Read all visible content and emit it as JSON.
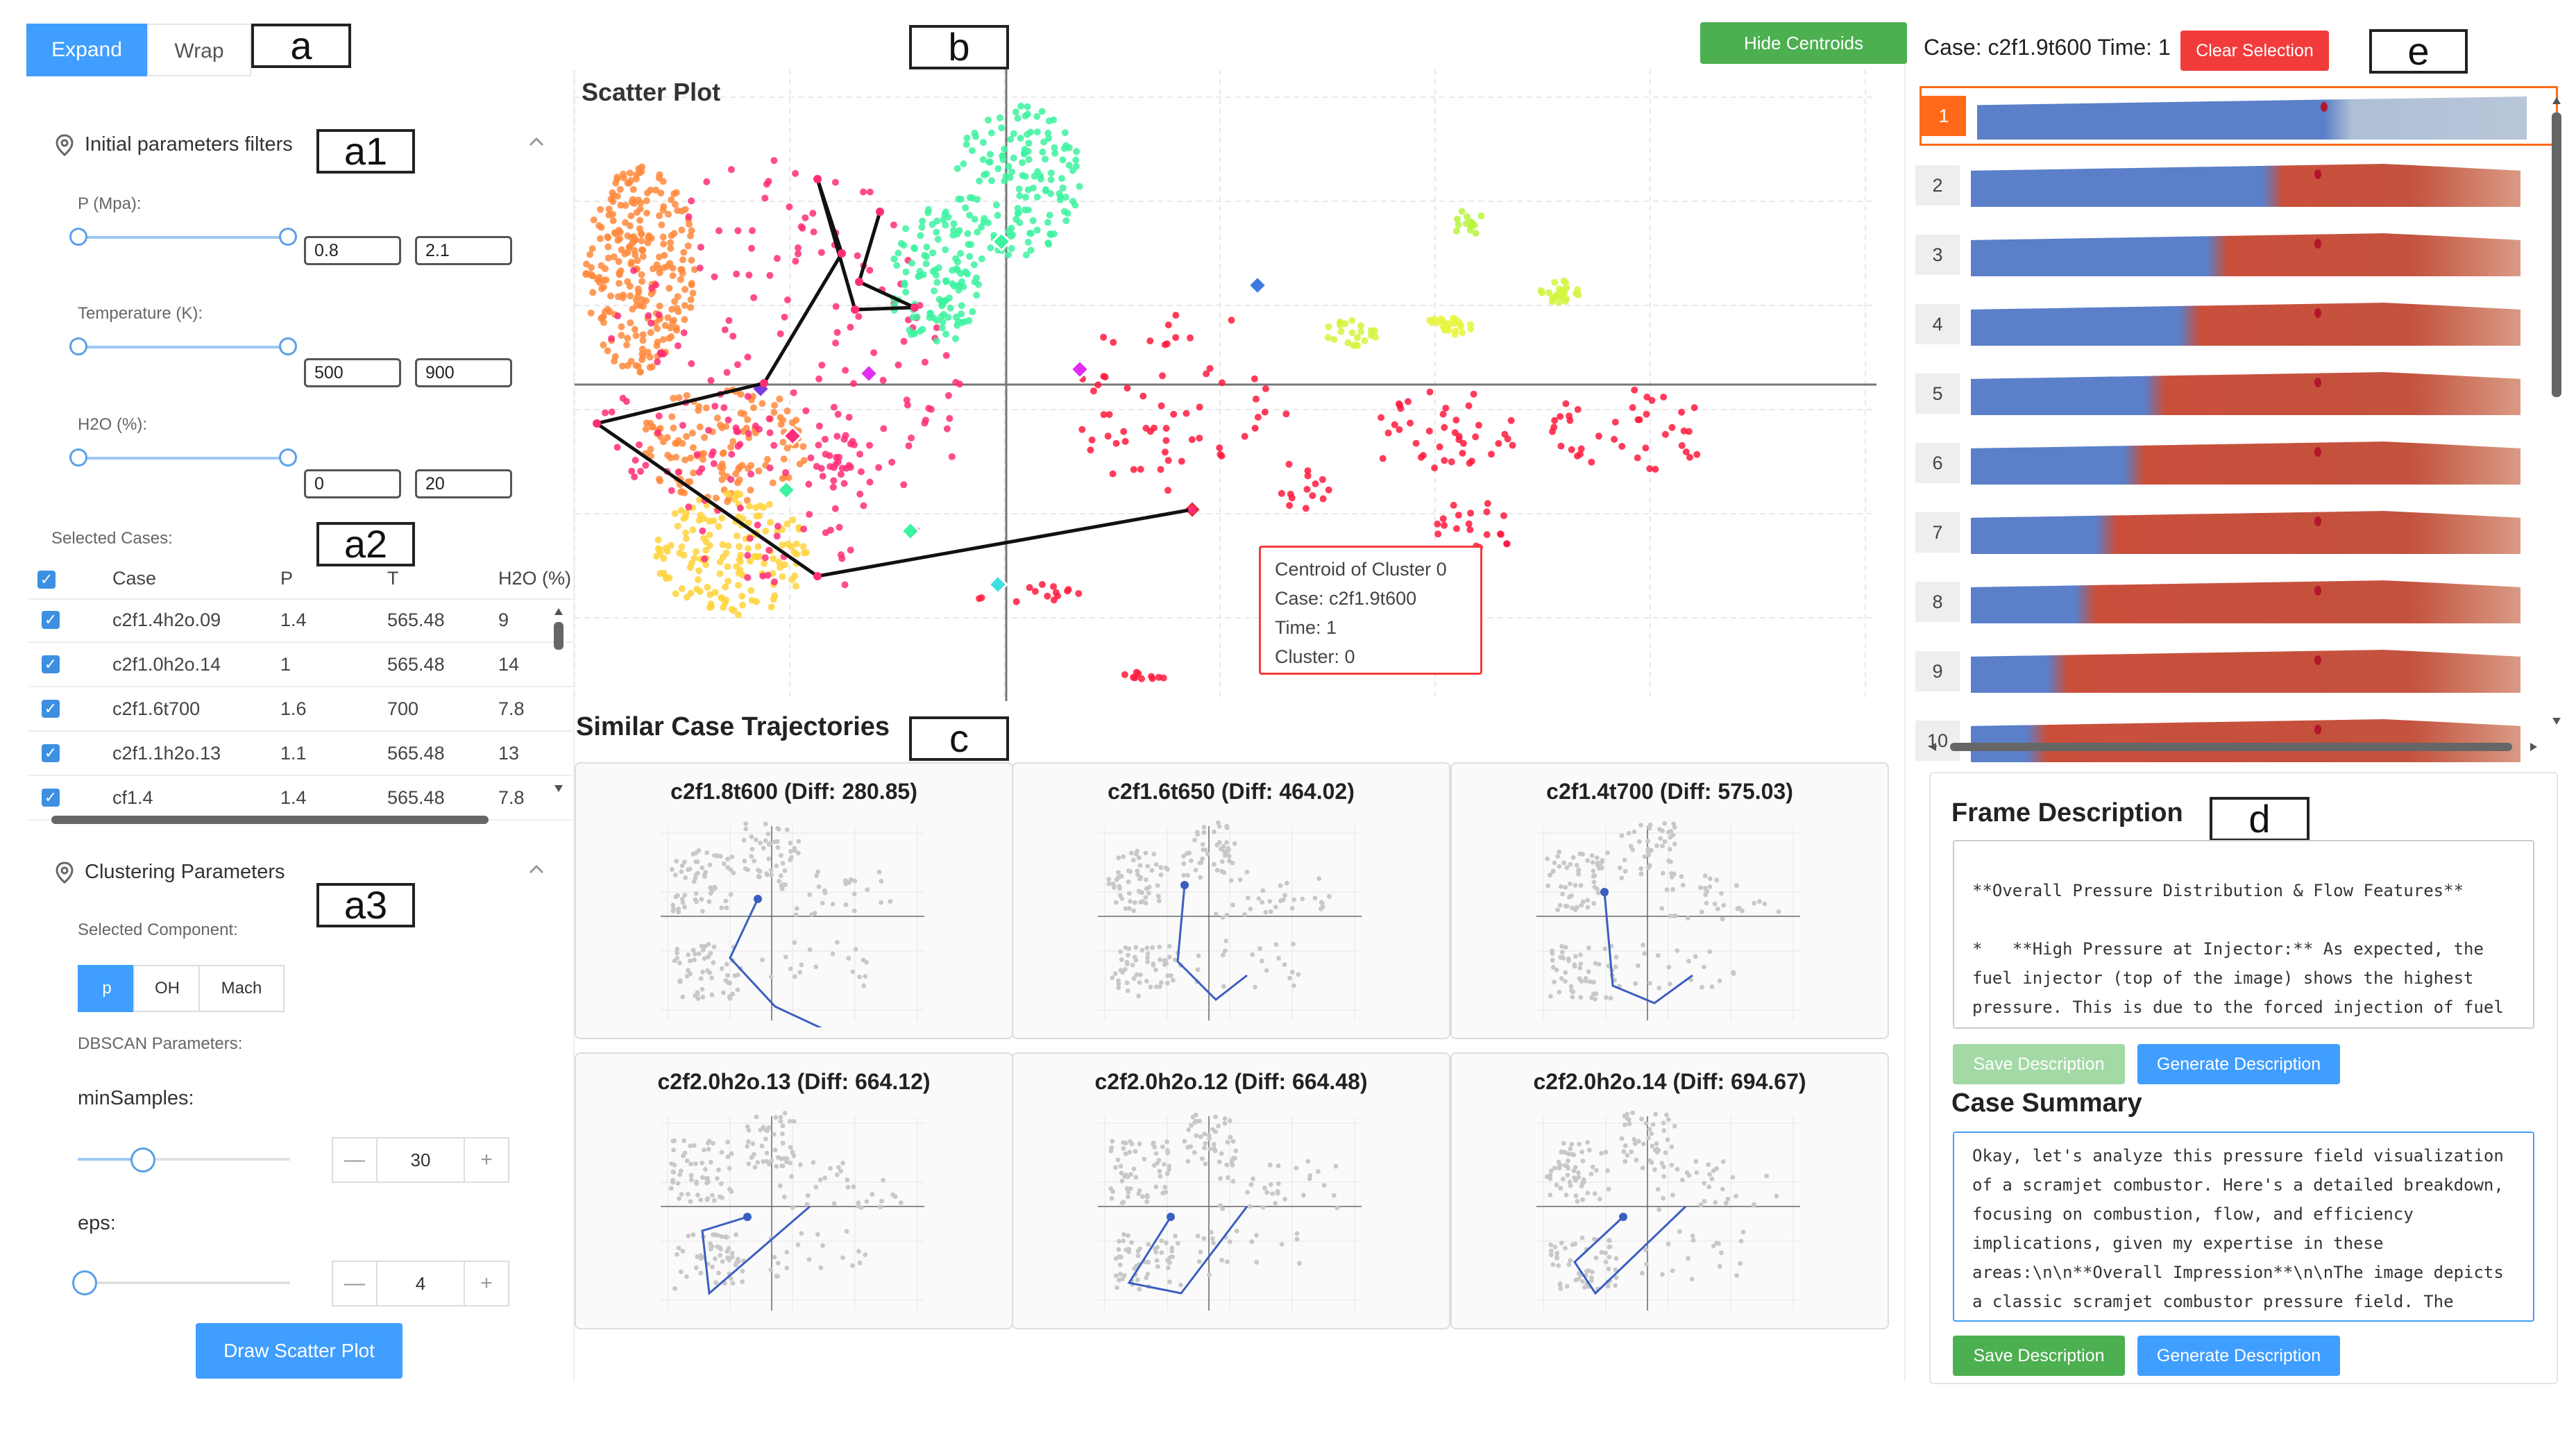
{
  "tabs": [
    {
      "label": "Expand",
      "active": true
    },
    {
      "label": "Wrap",
      "active": false
    }
  ],
  "panel_labels": {
    "a": "a",
    "a1": "a1",
    "a2": "a2",
    "a3": "a3",
    "b": "b",
    "c": "c",
    "d": "d",
    "e": "e"
  },
  "filters": {
    "title": "Initial parameters filters",
    "p": {
      "label": "P (Mpa):",
      "min": "0.8",
      "max": "2.1"
    },
    "temperature": {
      "label": "Temperature (K):",
      "min": "500",
      "max": "900"
    },
    "h2o": {
      "label": "H2O (%):",
      "min": "0",
      "max": "20"
    }
  },
  "selected_cases": {
    "label": "Selected Cases:",
    "headers": [
      "Case",
      "P",
      "T",
      "H2O (%)"
    ],
    "rows": [
      [
        "c2f1.4h2o.09",
        "1.4",
        "565.48",
        "9"
      ],
      [
        "c2f1.0h2o.14",
        "1",
        "565.48",
        "14"
      ],
      [
        "c2f1.6t700",
        "1.6",
        "700",
        "7.8"
      ],
      [
        "c2f1.1h2o.13",
        "1.1",
        "565.48",
        "13"
      ],
      [
        "cf1.4",
        "1.4",
        "565.48",
        "7.8"
      ]
    ]
  },
  "clustering": {
    "title": "Clustering Parameters",
    "component_label": "Selected Component:",
    "components": [
      "p",
      "OH",
      "Mach"
    ],
    "dbscan_label": "DBSCAN Parameters:",
    "min_samples_label": "minSamples:",
    "min_samples": "30",
    "eps_label": "eps:",
    "eps": "4",
    "minus": "—",
    "plus": "+",
    "draw_button": "Draw Scatter Plot"
  },
  "scatter": {
    "title": "Scatter Plot",
    "hide_centroids": "Hide Centroids",
    "tooltip": [
      "Centroid of Cluster 0",
      "Case: c2f1.9t600",
      "Time: 1",
      "Cluster: 0"
    ]
  },
  "similar": {
    "title": "Similar Case Trajectories",
    "cases": [
      "c2f1.8t600 (Diff: 280.85)",
      "c2f1.6t650 (Diff: 464.02)",
      "c2f1.4t700 (Diff: 575.03)",
      "c2f2.0h2o.13 (Diff: 664.12)",
      "c2f2.0h2o.12 (Diff: 664.48)",
      "c2f2.0h2o.14 (Diff: 694.67)"
    ]
  },
  "case_header": {
    "text": "Case: c2f1.9t600 Time: 1",
    "clear": "Clear Selection"
  },
  "frames": [
    "1",
    "2",
    "3",
    "4",
    "5",
    "6",
    "7",
    "8",
    "9",
    "10"
  ],
  "frame_description": {
    "title": "Frame Description",
    "text": "**Overall Pressure Distribution & Flow Features**\n\n*   **High Pressure at Injector:** As expected, the fuel injector (top of the image) shows the highest pressure. This is due to the forced injection of fuel",
    "save": "Save Description",
    "generate": "Generate Description"
  },
  "case_summary": {
    "title": "Case Summary",
    "text": "Okay, let's analyze this pressure field visualization of a scramjet combustor. Here's a detailed breakdown, focusing on combustion, flow, and efficiency implications, given my expertise in these areas:\\n\\n**Overall Impression**\\n\\nThe image depicts a classic scramjet combustor pressure field. The",
    "save": "Save Description",
    "generate": "Generate Description"
  },
  "colors": {
    "accent": "#409eff",
    "green": "#4caf50",
    "red": "#f23b3b",
    "traj": "#3b5fc0",
    "orange": "#ff6a1a"
  }
}
